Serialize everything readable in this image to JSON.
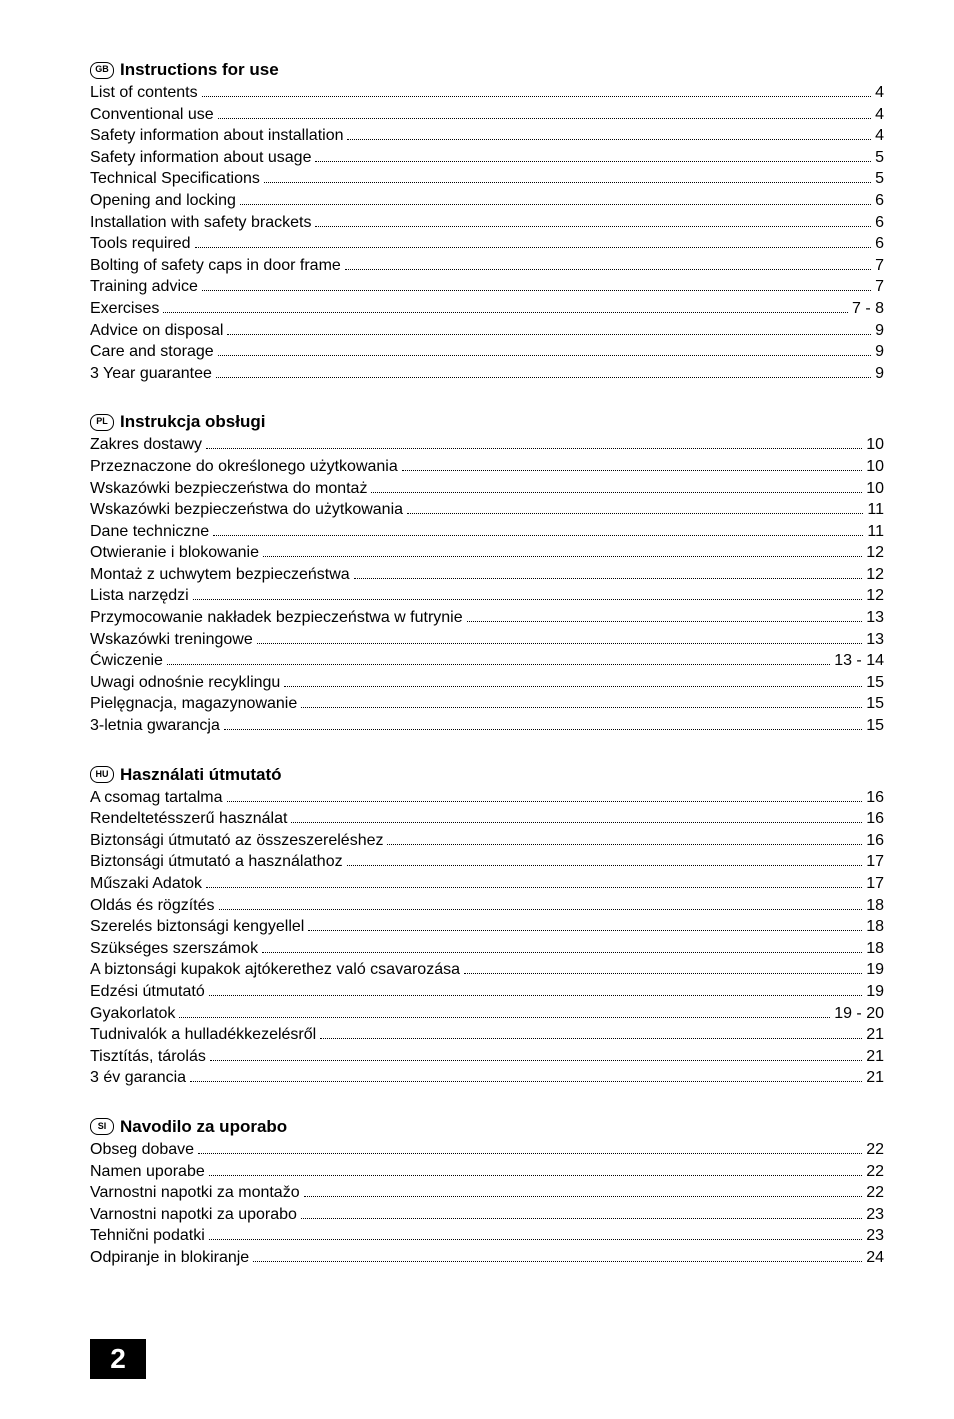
{
  "sections": [
    {
      "lang_code": "GB",
      "title": "Instructions for use",
      "items": [
        {
          "label": "List of contents",
          "page": "4"
        },
        {
          "label": "Conventional use",
          "page": "4"
        },
        {
          "label": "Safety information about installation",
          "page": "4"
        },
        {
          "label": "Safety information about usage",
          "page": "5"
        },
        {
          "label": "Technical Specifications",
          "page": "5"
        },
        {
          "label": "Opening and locking",
          "page": "6"
        },
        {
          "label": "Installation with safety brackets",
          "page": "6"
        },
        {
          "label": "Tools required",
          "page": "6"
        },
        {
          "label": "Bolting of safety caps in door frame",
          "page": "7"
        },
        {
          "label": "Training advice",
          "page": "7"
        },
        {
          "label": "Exercises",
          "page": "7 - 8"
        },
        {
          "label": "Advice on disposal",
          "page": "9"
        },
        {
          "label": "Care and storage",
          "page": "9"
        },
        {
          "label": "3 Year guarantee",
          "page": "9"
        }
      ]
    },
    {
      "lang_code": "PL",
      "title": "Instrukcja obsługi",
      "items": [
        {
          "label": "Zakres dostawy",
          "page": "10"
        },
        {
          "label": "Przeznaczone do określonego użytkowania",
          "page": "10"
        },
        {
          "label": "Wskazówki bezpieczeństwa do montaż",
          "page": "10"
        },
        {
          "label": "Wskazówki bezpieczeństwa do użytkowania",
          "page": "11"
        },
        {
          "label": "Dane techniczne",
          "page": "11"
        },
        {
          "label": "Otwieranie i blokowanie",
          "page": "12"
        },
        {
          "label": "Montaż z uchwytem bezpieczeństwa",
          "page": "12"
        },
        {
          "label": "Lista narzędzi",
          "page": "12"
        },
        {
          "label": "Przymocowanie nakładek bezpieczeństwa w futrynie",
          "page": "13"
        },
        {
          "label": "Wskazówki treningowe",
          "page": "13"
        },
        {
          "label": "Ćwiczenie",
          "page": "13 - 14"
        },
        {
          "label": "Uwagi odnośnie recyklingu",
          "page": "15"
        },
        {
          "label": "Pielęgnacja, magazynowanie",
          "page": "15"
        },
        {
          "label": "3-letnia gwarancja",
          "page": "15"
        }
      ]
    },
    {
      "lang_code": "HU",
      "title": "Használati útmutató",
      "items": [
        {
          "label": "A csomag tartalma",
          "page": "16"
        },
        {
          "label": "Rendeltetésszerű használat",
          "page": "16"
        },
        {
          "label": "Biztonsági útmutató az összeszereléshez",
          "page": "16"
        },
        {
          "label": "Biztonsági útmutató a használathoz",
          "page": "17"
        },
        {
          "label": "Műszaki Adatok",
          "page": "17"
        },
        {
          "label": "Oldás és rögzítés",
          "page": "18"
        },
        {
          "label": "Szerelés biztonsági kengyellel",
          "page": "18"
        },
        {
          "label": "Szükséges szerszámok",
          "page": "18"
        },
        {
          "label": "A biztonsági kupakok ajtókerethez való csavarozása",
          "page": "19"
        },
        {
          "label": "Edzési útmutató",
          "page": "19"
        },
        {
          "label": "Gyakorlatok",
          "page": "19 - 20"
        },
        {
          "label": "Tudnivalók a hulladékkezelésről",
          "page": "21"
        },
        {
          "label": "Tisztítás, tárolás",
          "page": "21"
        },
        {
          "label": "3 év garancia",
          "page": "21"
        }
      ]
    },
    {
      "lang_code": "SI",
      "title": "Navodilo za uporabo",
      "items": [
        {
          "label": "Obseg dobave",
          "page": "22"
        },
        {
          "label": "Namen uporabe",
          "page": "22"
        },
        {
          "label": "Varnostni napotki za montažo",
          "page": "22"
        },
        {
          "label": "Varnostni napotki za uporabo",
          "page": "23"
        },
        {
          "label": "Tehnični podatki",
          "page": "23"
        },
        {
          "label": "Odpiranje in blokiranje",
          "page": "24"
        }
      ]
    }
  ],
  "page_number": "2"
}
